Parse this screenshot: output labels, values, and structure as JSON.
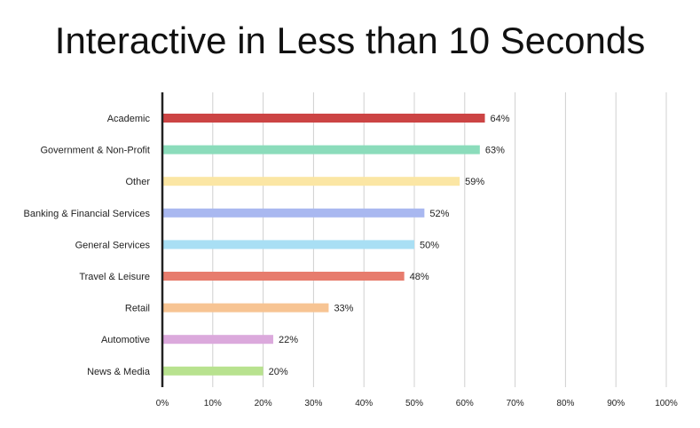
{
  "chart_data": {
    "type": "bar",
    "orientation": "horizontal",
    "title": "Interactive in Less than 10 Seconds",
    "categories": [
      "Academic",
      "Government & Non-Profit",
      "Other",
      "Banking & Financial Services",
      "General Services",
      "Travel & Leisure",
      "Retail",
      "Automotive",
      "News & Media"
    ],
    "values": [
      64,
      63,
      59,
      52,
      50,
      48,
      33,
      22,
      20
    ],
    "value_labels": [
      "64%",
      "63%",
      "59%",
      "52%",
      "50%",
      "48%",
      "33%",
      "22%",
      "20%"
    ],
    "colors": [
      "#cc4444",
      "#8bdcbb",
      "#fbe6a4",
      "#a9b8f0",
      "#a9dff4",
      "#e77c6d",
      "#f7c493",
      "#dba9dc",
      "#b8e28f"
    ],
    "xlim": [
      0,
      100
    ],
    "x_ticks": [
      "0%",
      "10%",
      "20%",
      "30%",
      "40%",
      "50%",
      "60%",
      "70%",
      "80%",
      "90%",
      "100%"
    ],
    "grid": "vertical",
    "legend": "none"
  }
}
